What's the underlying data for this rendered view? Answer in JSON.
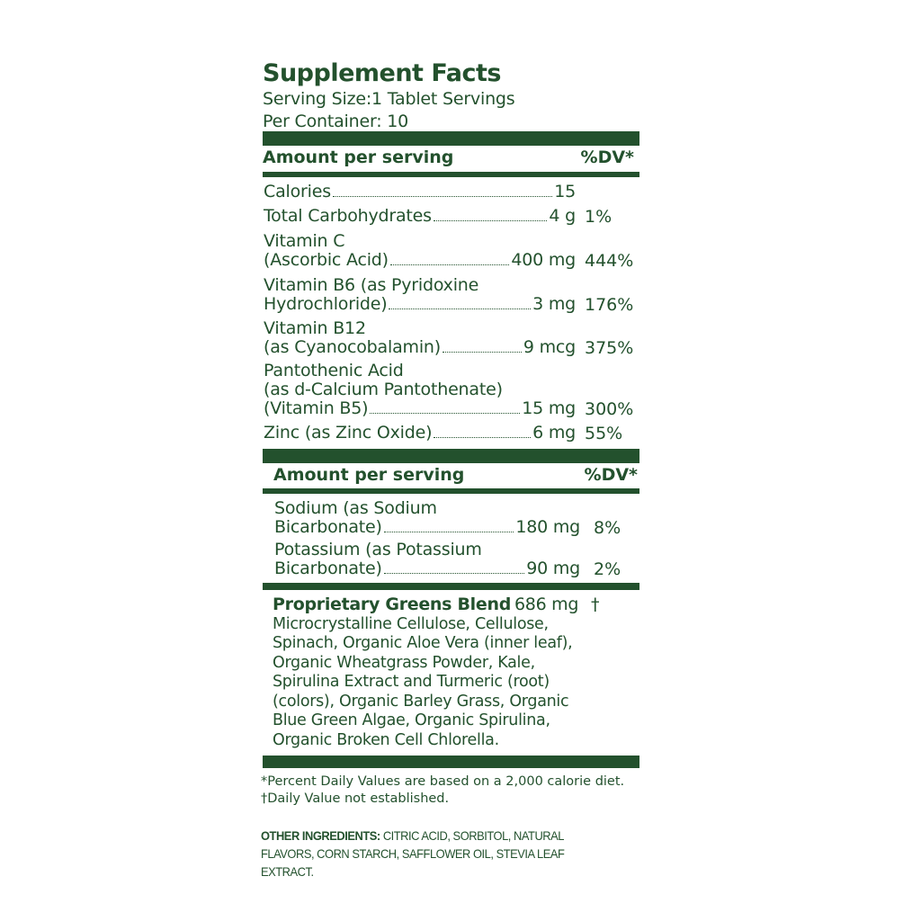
{
  "label": {
    "title": "Supplement Facts",
    "serving_size": "Serving Size:1 Tablet Servings",
    "per_container": "Per Container: 10",
    "section1_header": {
      "left": "Amount per serving",
      "right": "%DV*"
    },
    "section1_rows": [
      {
        "lines": [
          "Calories"
        ],
        "amount": "15",
        "dv": ""
      },
      {
        "lines": [
          "Total Carbohydrates"
        ],
        "amount": "4 g",
        "dv": "1%"
      },
      {
        "lines": [
          "Vitamin C",
          "(Ascorbic Acid)"
        ],
        "amount": "400 mg",
        "dv": "444%"
      },
      {
        "lines": [
          "Vitamin B6 (as Pyridoxine",
          "Hydrochloride)"
        ],
        "amount": "3 mg",
        "dv": "176%"
      },
      {
        "lines": [
          "Vitamin B12",
          "(as Cyanocobalamin)"
        ],
        "amount": "9 mcg",
        "dv": "375%"
      },
      {
        "lines": [
          "Pantothenic Acid",
          "(as d-Calcium Pantothenate)",
          "(Vitamin B5)"
        ],
        "amount": "15 mg",
        "dv": "300%"
      },
      {
        "lines": [
          "Zinc (as Zinc Oxide)"
        ],
        "amount": "6 mg",
        "dv": "55%"
      }
    ],
    "section2_header": {
      "left": "Amount per serving",
      "right": "%DV*"
    },
    "section2_rows": [
      {
        "lines": [
          "Sodium (as Sodium",
          "Bicarbonate)"
        ],
        "amount": "180 mg",
        "dv": "8%"
      },
      {
        "lines": [
          "Potassium (as Potassium",
          "Bicarbonate)"
        ],
        "amount": "90 mg",
        "dv": "2%"
      }
    ],
    "blend": {
      "name": "Proprietary Greens Blend",
      "amount": "686 mg",
      "dv": "†",
      "ingredients": "Microcrystalline Cellulose, Cellulose, Spinach, Organic Aloe Vera (inner leaf), Organic Wheatgrass Powder, Kale, Spirulina Extract and Turmeric (root) (colors), Organic Barley Grass, Organic Blue Green Algae, Organic Spirulina, Organic Broken Cell Chlorella."
    },
    "footnote_1": "*Percent Daily Values are based on a 2,000 calorie diet.",
    "footnote_2": "†Daily Value not established.",
    "other_ingredients_label": "OTHER INGREDIENTS:",
    "other_ingredients": "CITRIC ACID, SORBITOL, NATURAL FLAVORS, CORN STARCH, SAFFLOWER OIL, STEVIA LEAF EXTRACT."
  },
  "colors": {
    "text": "#23512d",
    "bar": "#23512d",
    "background": "#ffffff"
  }
}
